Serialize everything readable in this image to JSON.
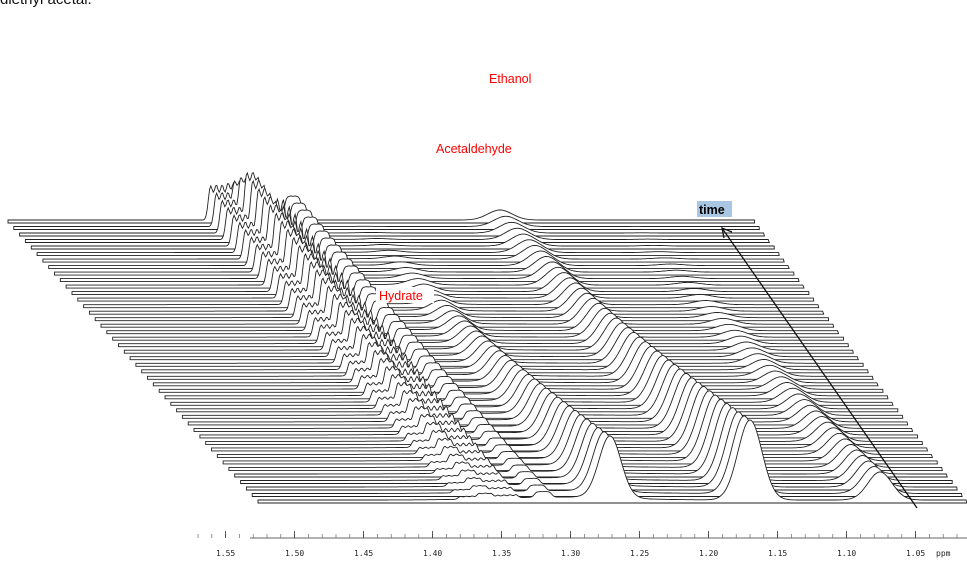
{
  "caption": "diethyl acetal.",
  "chart_data": {
    "type": "stacked-spectra",
    "title": "",
    "xlabel": "ppm",
    "ylabel": "",
    "depth_axis_label": "time",
    "x_reversed": true,
    "xlim": [
      1.02,
      1.58
    ],
    "x_ticks": [
      1.55,
      1.5,
      1.45,
      1.4,
      1.35,
      1.3,
      1.25,
      1.2,
      1.15,
      1.1,
      1.05
    ],
    "x_tick_labels": [
      "1.55",
      "1.50",
      "1.45",
      "1.40",
      "1.35",
      "1.30",
      "1.25",
      "1.20",
      "1.15",
      "1.10",
      "1.05"
    ],
    "n_spectra": 44,
    "peaks": [
      {
        "name": "Ethanol",
        "ppm": 1.38,
        "trend": "increasing"
      },
      {
        "name": "Acetaldehyde",
        "ppm": 1.36,
        "trend": "increasing"
      },
      {
        "name": "Hydrate",
        "ppm": 1.55,
        "trend": "increasing"
      },
      {
        "name": "",
        "ppm": 1.26,
        "trend": "decreasing"
      },
      {
        "name": "",
        "ppm": 1.15,
        "trend": "decreasing"
      },
      {
        "name": "",
        "ppm": 1.04,
        "trend": "decreasing"
      }
    ],
    "annotations": [
      {
        "text": "Ethanol",
        "color": "#ff0000"
      },
      {
        "text": "Acetaldehyde",
        "color": "#ff0000"
      },
      {
        "text": "Hydrate",
        "color": "#ff0000"
      },
      {
        "text": "time",
        "color": "#000000",
        "highlight": "#a9c7e2"
      }
    ],
    "grid": false,
    "legend": "none"
  }
}
